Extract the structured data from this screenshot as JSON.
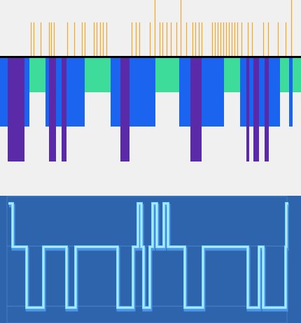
{
  "colors": {
    "background": "#f0f0f0",
    "baseline": "#000000",
    "tick": "#f5a623",
    "teal": "#3ddc9a",
    "blue": "#1a64f0",
    "purple": "#5a2aa8",
    "panel": "#2e64ac",
    "panel_edge": "#3b74be",
    "wave_upper": "#cfe9ff",
    "wave_lower": "#68d8ff",
    "wave_shadow": "#4f93e6",
    "grid": "#4a86c8"
  },
  "ticks": [
    {
      "x": 44,
      "tall": false
    },
    {
      "x": 48,
      "tall": false
    },
    {
      "x": 58,
      "tall": false
    },
    {
      "x": 70,
      "tall": false
    },
    {
      "x": 73,
      "tall": false
    },
    {
      "x": 77,
      "tall": false
    },
    {
      "x": 96,
      "tall": false
    },
    {
      "x": 106,
      "tall": false
    },
    {
      "x": 117,
      "tall": false
    },
    {
      "x": 121,
      "tall": false
    },
    {
      "x": 134,
      "tall": false
    },
    {
      "x": 138,
      "tall": false
    },
    {
      "x": 143,
      "tall": false
    },
    {
      "x": 147,
      "tall": false
    },
    {
      "x": 152,
      "tall": false
    },
    {
      "x": 188,
      "tall": false
    },
    {
      "x": 194,
      "tall": false
    },
    {
      "x": 199,
      "tall": false
    },
    {
      "x": 214,
      "tall": false
    },
    {
      "x": 221,
      "tall": true
    },
    {
      "x": 228,
      "tall": false
    },
    {
      "x": 232,
      "tall": false
    },
    {
      "x": 238,
      "tall": false
    },
    {
      "x": 244,
      "tall": false
    },
    {
      "x": 252,
      "tall": false
    },
    {
      "x": 258,
      "tall": true
    },
    {
      "x": 266,
      "tall": false
    },
    {
      "x": 275,
      "tall": false
    },
    {
      "x": 279,
      "tall": false
    },
    {
      "x": 284,
      "tall": false
    },
    {
      "x": 288,
      "tall": false
    },
    {
      "x": 303,
      "tall": false
    },
    {
      "x": 307,
      "tall": false
    },
    {
      "x": 311,
      "tall": false
    },
    {
      "x": 315,
      "tall": false
    },
    {
      "x": 319,
      "tall": false
    },
    {
      "x": 323,
      "tall": false
    },
    {
      "x": 327,
      "tall": false
    },
    {
      "x": 331,
      "tall": false
    },
    {
      "x": 335,
      "tall": false
    },
    {
      "x": 339,
      "tall": false
    },
    {
      "x": 345,
      "tall": false
    },
    {
      "x": 354,
      "tall": false
    },
    {
      "x": 360,
      "tall": false
    },
    {
      "x": 376,
      "tall": false
    },
    {
      "x": 383,
      "tall": false
    },
    {
      "x": 397,
      "tall": false
    },
    {
      "x": 408,
      "tall": false
    },
    {
      "x": 416,
      "tall": true
    }
  ],
  "bands": [
    {
      "x0": 0,
      "x1": 11,
      "color": "blue",
      "depth": "mid"
    },
    {
      "x0": 11,
      "x1": 35,
      "color": "purple",
      "depth": "deep"
    },
    {
      "x0": 35,
      "x1": 42,
      "color": "blue",
      "depth": "mid"
    },
    {
      "x0": 42,
      "x1": 65,
      "color": "teal",
      "depth": "short"
    },
    {
      "x0": 65,
      "x1": 70,
      "color": "blue",
      "depth": "mid"
    },
    {
      "x0": 70,
      "x1": 80,
      "color": "purple",
      "depth": "deep"
    },
    {
      "x0": 80,
      "x1": 88,
      "color": "blue",
      "depth": "mid"
    },
    {
      "x0": 88,
      "x1": 95,
      "color": "purple",
      "depth": "deep"
    },
    {
      "x0": 95,
      "x1": 121,
      "color": "blue",
      "depth": "mid"
    },
    {
      "x0": 121,
      "x1": 158,
      "color": "teal",
      "depth": "short"
    },
    {
      "x0": 158,
      "x1": 172,
      "color": "blue",
      "depth": "mid"
    },
    {
      "x0": 172,
      "x1": 185,
      "color": "purple",
      "depth": "deep"
    },
    {
      "x0": 185,
      "x1": 222,
      "color": "blue",
      "depth": "mid"
    },
    {
      "x0": 222,
      "x1": 256,
      "color": "teal",
      "depth": "short"
    },
    {
      "x0": 256,
      "x1": 260,
      "color": "blue",
      "depth": "mid"
    },
    {
      "x0": 260,
      "x1": 272,
      "color": "blue",
      "depth": "mid"
    },
    {
      "x0": 272,
      "x1": 288,
      "color": "purple",
      "depth": "deep"
    },
    {
      "x0": 288,
      "x1": 295,
      "color": "blue",
      "depth": "mid"
    },
    {
      "x0": 295,
      "x1": 320,
      "color": "blue",
      "depth": "mid"
    },
    {
      "x0": 320,
      "x1": 343,
      "color": "teal",
      "depth": "short"
    },
    {
      "x0": 343,
      "x1": 352,
      "color": "blue",
      "depth": "mid"
    },
    {
      "x0": 352,
      "x1": 356,
      "color": "purple",
      "depth": "deep"
    },
    {
      "x0": 356,
      "x1": 362,
      "color": "blue",
      "depth": "mid"
    },
    {
      "x0": 362,
      "x1": 370,
      "color": "purple",
      "depth": "deep"
    },
    {
      "x0": 370,
      "x1": 378,
      "color": "blue",
      "depth": "mid"
    },
    {
      "x0": 378,
      "x1": 384,
      "color": "purple",
      "depth": "deep"
    },
    {
      "x0": 384,
      "x1": 400,
      "color": "blue",
      "depth": "mid"
    },
    {
      "x0": 400,
      "x1": 413,
      "color": "teal",
      "depth": "short"
    },
    {
      "x0": 413,
      "x1": 418,
      "color": "blue",
      "depth": "mid"
    },
    {
      "x0": 418,
      "x1": 430,
      "color": "teal",
      "depth": "short"
    }
  ],
  "signal": [
    {
      "x0": 12,
      "x1": 18,
      "level": "high"
    },
    {
      "x0": 18,
      "x1": 24,
      "level": "mid"
    },
    {
      "x0": 24,
      "x1": 38,
      "level": "mid"
    },
    {
      "x0": 38,
      "x1": 62,
      "level": "low"
    },
    {
      "x0": 62,
      "x1": 95,
      "level": "mid"
    },
    {
      "x0": 95,
      "x1": 108,
      "level": "low"
    },
    {
      "x0": 108,
      "x1": 152,
      "level": "mid"
    },
    {
      "x0": 152,
      "x1": 168,
      "level": "mid"
    },
    {
      "x0": 168,
      "x1": 190,
      "level": "low"
    },
    {
      "x0": 190,
      "x1": 197,
      "level": "mid"
    },
    {
      "x0": 197,
      "x1": 202,
      "level": "high"
    },
    {
      "x0": 202,
      "x1": 205,
      "level": "mid"
    },
    {
      "x0": 205,
      "x1": 214,
      "level": "low"
    },
    {
      "x0": 214,
      "x1": 218,
      "level": "mid"
    },
    {
      "x0": 218,
      "x1": 224,
      "level": "high"
    },
    {
      "x0": 224,
      "x1": 234,
      "level": "mid"
    },
    {
      "x0": 234,
      "x1": 240,
      "level": "high"
    },
    {
      "x0": 240,
      "x1": 264,
      "level": "mid"
    },
    {
      "x0": 264,
      "x1": 290,
      "level": "low"
    },
    {
      "x0": 290,
      "x1": 354,
      "level": "mid"
    },
    {
      "x0": 354,
      "x1": 370,
      "level": "low"
    },
    {
      "x0": 370,
      "x1": 376,
      "level": "mid"
    },
    {
      "x0": 376,
      "x1": 408,
      "level": "low"
    },
    {
      "x0": 408,
      "x1": 409,
      "level": "mid"
    },
    {
      "x0": 409,
      "x1": 412,
      "level": "high"
    }
  ]
}
